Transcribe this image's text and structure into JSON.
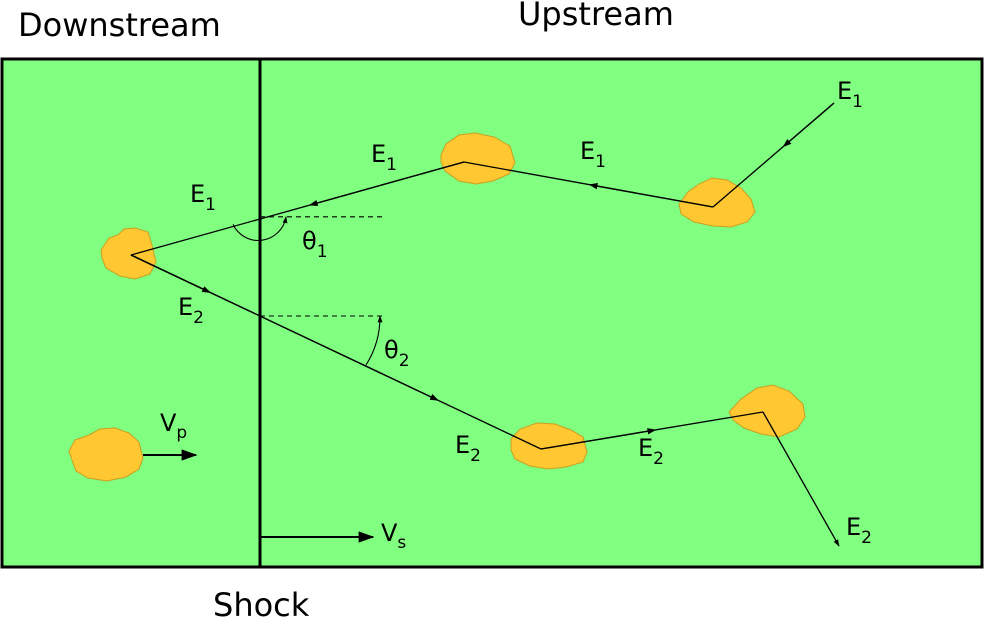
{
  "headings": {
    "downstream": "Downstream",
    "upstream": "Upstream",
    "shock": "Shock"
  },
  "labels": {
    "energy_symbol": "E",
    "e1_sub": "1",
    "e2_sub": "2",
    "theta_symbol": "θ",
    "theta1_sub": "1",
    "theta2_sub": "2",
    "vp_symbol": "V",
    "vp_sub": "p",
    "vs_symbol": "V",
    "vs_sub": "s"
  },
  "colors": {
    "region_fill": "#80ff80",
    "scatterer_fill": "#ffc832",
    "line": "#000000"
  }
}
